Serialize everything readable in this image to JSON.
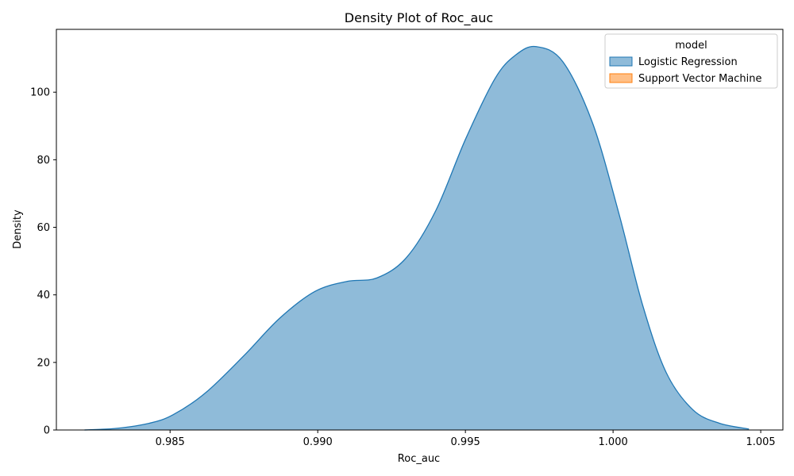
{
  "chart_data": {
    "type": "area",
    "title": "Density Plot of Roc_auc",
    "xlabel": "Roc_auc",
    "ylabel": "Density",
    "xlim": [
      0.98115,
      1.00575
    ],
    "ylim": [
      0,
      118.6
    ],
    "x_ticks": [
      0.985,
      0.99,
      0.995,
      1.0,
      1.005
    ],
    "x_tick_labels": [
      "0.985",
      "0.990",
      "0.995",
      "1.000",
      "1.005"
    ],
    "y_ticks": [
      0,
      20,
      40,
      60,
      80,
      100
    ],
    "y_tick_labels": [
      "0",
      "20",
      "40",
      "60",
      "80",
      "100"
    ],
    "grid": false,
    "legend": {
      "title": "model",
      "placement": "top-right",
      "entries": [
        "Logistic Regression",
        "Support Vector Machine"
      ]
    },
    "series": [
      {
        "name": "Logistic Regression",
        "fill": "#1f77b4",
        "fill_opacity": 0.5,
        "stroke": "#1f77b4",
        "points": [
          [
            0.9821,
            0
          ],
          [
            0.9832,
            0.5
          ],
          [
            0.9843,
            2.0
          ],
          [
            0.9851,
            4.5
          ],
          [
            0.9862,
            11
          ],
          [
            0.9875,
            22
          ],
          [
            0.9887,
            33
          ],
          [
            0.9899,
            41
          ],
          [
            0.991,
            44
          ],
          [
            0.992,
            45
          ],
          [
            0.993,
            51
          ],
          [
            0.994,
            65
          ],
          [
            0.995,
            86
          ],
          [
            0.996,
            104
          ],
          [
            0.9967,
            111
          ],
          [
            0.9974,
            113.5
          ],
          [
            0.9983,
            109
          ],
          [
            0.9993,
            91
          ],
          [
            1.0002,
            64
          ],
          [
            1.001,
            37
          ],
          [
            1.0018,
            17
          ],
          [
            1.0027,
            6
          ],
          [
            1.0036,
            2
          ],
          [
            1.0046,
            0.3
          ]
        ]
      },
      {
        "name": "Support Vector Machine",
        "fill": "#ff7f0e",
        "fill_opacity": 0.5,
        "stroke": "#ff7f0e",
        "points": []
      }
    ]
  }
}
